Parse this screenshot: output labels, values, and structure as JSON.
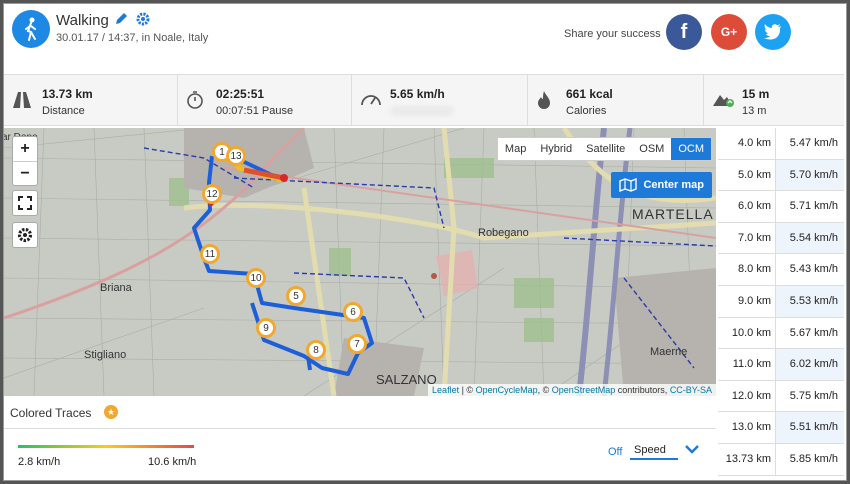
{
  "header": {
    "activity": "Walking",
    "subtitle": "30.01.17 / 14:37, in Noale, Italy",
    "share_text": "Share your success",
    "social": {
      "facebook": "f",
      "googleplus": "G+",
      "twitter": "t"
    }
  },
  "stats": [
    {
      "icon": "road-icon",
      "value": "13.73 km",
      "label": "Distance"
    },
    {
      "icon": "stopwatch-icon",
      "value": "02:25:51",
      "label": "00:07:51 Pause"
    },
    {
      "icon": "speedometer-icon",
      "value": "5.65 km/h",
      "label": ""
    },
    {
      "icon": "flame-icon",
      "value": "661 kcal",
      "label": "Calories"
    },
    {
      "icon": "mountain-icon",
      "value": "15 m",
      "label": "13 m"
    }
  ],
  "map": {
    "layers": [
      "Map",
      "Hybrid",
      "Satellite",
      "OSM",
      "OCM"
    ],
    "active_layer": "OCM",
    "center_label": "Center map",
    "zoom_in": "+",
    "zoom_out": "−",
    "places": {
      "martella": "MARTELLA",
      "robegano": "Robegano",
      "briana": "Briana",
      "stigliano": "Stigliano",
      "salzano": "SALZANO",
      "maerne": "Maerne",
      "ardeno": "ar Deno"
    },
    "markers": [
      "1",
      "13",
      "12",
      "11",
      "10",
      "5",
      "6",
      "9",
      "8",
      "7"
    ],
    "attribution": {
      "leaflet": "Leaflet",
      "sep1": " | © ",
      "ocm": "OpenCycleMap",
      "sep2": ", © ",
      "osm": "OpenStreetMap",
      "sep3": " contributors, ",
      "cc": "CC-BY-SA"
    }
  },
  "splits": [
    {
      "km": "4.0 km",
      "speed": "5.47 km/h"
    },
    {
      "km": "5.0 km",
      "speed": "5.70 km/h"
    },
    {
      "km": "6.0 km",
      "speed": "5.71 km/h"
    },
    {
      "km": "7.0 km",
      "speed": "5.54 km/h"
    },
    {
      "km": "8.0 km",
      "speed": "5.43 km/h"
    },
    {
      "km": "9.0 km",
      "speed": "5.53 km/h"
    },
    {
      "km": "10.0 km",
      "speed": "5.67 km/h"
    },
    {
      "km": "11.0 km",
      "speed": "6.02 km/h"
    },
    {
      "km": "12.0 km",
      "speed": "5.75 km/h"
    },
    {
      "km": "13.0 km",
      "speed": "5.51 km/h"
    },
    {
      "km": "13.73 km",
      "speed": "5.85 km/h"
    }
  ],
  "colored_traces": {
    "title": "Colored Traces",
    "star": "★",
    "min_label": "2.8 km/h",
    "max_label": "10.6 km/h",
    "off_label": "Off",
    "selected": "Speed"
  },
  "colors": {
    "accent": "#1e7ad8",
    "marker": "#f0a830",
    "route": "#1e5fd8"
  }
}
